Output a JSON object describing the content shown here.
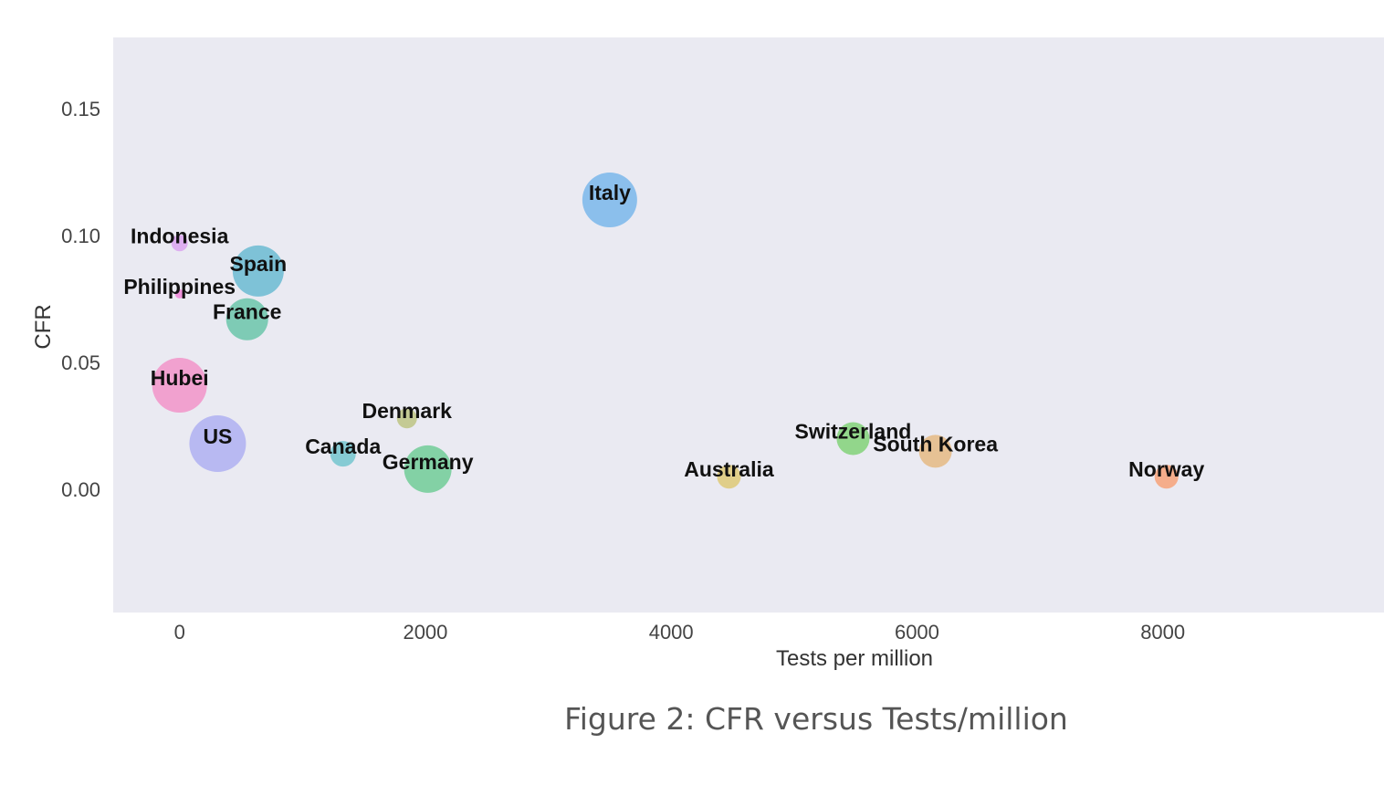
{
  "chart_data": {
    "type": "scatter",
    "title": "",
    "xlabel": "Tests per million",
    "ylabel": "CFR",
    "xlim": [
      -540,
      9800
    ],
    "ylim": [
      -0.0485,
      0.178
    ],
    "xticks": [
      0,
      2000,
      4000,
      6000,
      8000
    ],
    "yticks": [
      0.0,
      0.05,
      0.1,
      0.15
    ],
    "xtick_labels": [
      "0",
      "2000",
      "4000",
      "6000",
      "8000"
    ],
    "ytick_labels": [
      "0.00",
      "0.05",
      "0.10",
      "0.15"
    ],
    "grid": false,
    "background": "#eaeaf2",
    "points": [
      {
        "label": "Italy",
        "x": 3500,
        "y": 0.114,
        "size": 30,
        "color": "#6fb2ea"
      },
      {
        "label": "Indonesia",
        "x": 0,
        "y": 0.097,
        "size": 9,
        "color": "#d89cf0"
      },
      {
        "label": "Spain",
        "x": 640,
        "y": 0.086,
        "size": 28,
        "color": "#5fb6cf"
      },
      {
        "label": "Philippines",
        "x": 0,
        "y": 0.077,
        "size": 5,
        "color": "#f07ad6"
      },
      {
        "label": "France",
        "x": 550,
        "y": 0.067,
        "size": 23,
        "color": "#5fc1a4"
      },
      {
        "label": "Hubei",
        "x": 0,
        "y": 0.041,
        "size": 30,
        "color": "#f28cc5"
      },
      {
        "label": "US",
        "x": 310,
        "y": 0.018,
        "size": 31,
        "color": "#a9abf2"
      },
      {
        "label": "Denmark",
        "x": 1850,
        "y": 0.028,
        "size": 11,
        "color": "#b9c07a"
      },
      {
        "label": "Canada",
        "x": 1330,
        "y": 0.014,
        "size": 14,
        "color": "#69c2cc"
      },
      {
        "label": "Germany",
        "x": 2020,
        "y": 0.008,
        "size": 26,
        "color": "#65c98f"
      },
      {
        "label": "Australia",
        "x": 4470,
        "y": 0.005,
        "size": 13,
        "color": "#ddc56b"
      },
      {
        "label": "Switzerland",
        "x": 5480,
        "y": 0.02,
        "size": 18,
        "color": "#78cf6e"
      },
      {
        "label": "South Korea",
        "x": 6150,
        "y": 0.015,
        "size": 18,
        "color": "#e4b57a"
      },
      {
        "label": "Norway",
        "x": 8030,
        "y": 0.005,
        "size": 13,
        "color": "#f79b6e"
      }
    ]
  },
  "caption": "Figure 2: CFR versus Tests/million"
}
